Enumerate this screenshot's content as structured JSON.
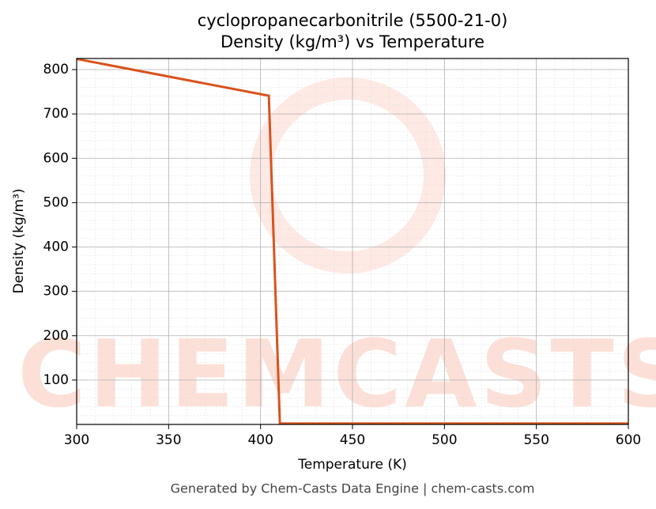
{
  "chart_data": {
    "type": "line",
    "title": "cyclopropanecarbonitrile (5500-21-0)",
    "subtitle": "Density (kg/m³) vs Temperature",
    "x_label": "Temperature (K)",
    "y_label": "Density (kg/m³)",
    "watermark": "CHEMCASTS",
    "footer": "Generated by Chem-Casts Data Engine | chem-casts.com",
    "x": [
      300,
      404.5,
      410.5,
      600
    ],
    "series": [
      {
        "name": "Density",
        "color": "#d9531e",
        "values": [
          824,
          741,
          2,
          2
        ]
      }
    ],
    "xlim": [
      300,
      600
    ],
    "ylim": [
      0,
      825
    ],
    "xticks": [
      300,
      350,
      400,
      450,
      500,
      550,
      600
    ],
    "yticks": [
      100,
      200,
      300,
      400,
      500,
      600,
      700,
      800
    ],
    "grid": true
  }
}
